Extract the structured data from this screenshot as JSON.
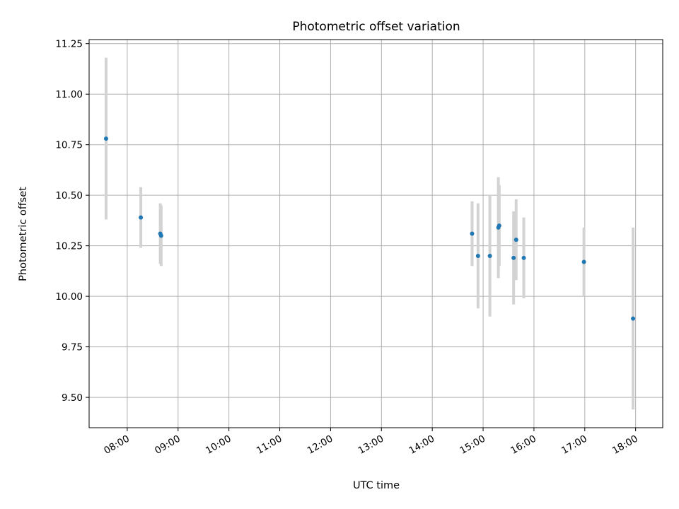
{
  "chart_data": {
    "type": "scatter",
    "title": "Photometric offset variation",
    "xlabel": "UTC time",
    "ylabel": "Photometric offset",
    "x_unit": "time of day (UTC)",
    "xlim": [
      "07:15",
      "18:32"
    ],
    "ylim": [
      9.35,
      11.27
    ],
    "x_ticks": [
      "08:00",
      "09:00",
      "10:00",
      "11:00",
      "12:00",
      "13:00",
      "14:00",
      "15:00",
      "16:00",
      "17:00",
      "18:00"
    ],
    "y_ticks": [
      "9.50",
      "9.75",
      "10.00",
      "10.25",
      "10.50",
      "10.75",
      "11.00",
      "11.25"
    ],
    "grid": true,
    "x_tick_rotation": "30 degrees",
    "colors": {
      "points": "#1f77b4",
      "error_bars": "#d3d3d3",
      "grid": "#b0b0b0",
      "axes": "#000000"
    },
    "points": [
      {
        "x": "07:35",
        "y": 10.78,
        "err": 0.4
      },
      {
        "x": "08:16",
        "y": 10.39,
        "err": 0.15
      },
      {
        "x": "08:39",
        "y": 10.31,
        "err": 0.15
      },
      {
        "x": "08:40",
        "y": 10.3,
        "err": 0.15
      },
      {
        "x": "14:47",
        "y": 10.31,
        "err": 0.16
      },
      {
        "x": "14:54",
        "y": 10.2,
        "err": 0.26
      },
      {
        "x": "15:08",
        "y": 10.2,
        "err": 0.3
      },
      {
        "x": "15:18",
        "y": 10.34,
        "err": 0.25
      },
      {
        "x": "15:19",
        "y": 10.35,
        "err": 0.2
      },
      {
        "x": "15:36",
        "y": 10.19,
        "err": 0.23
      },
      {
        "x": "15:39",
        "y": 10.28,
        "err": 0.2
      },
      {
        "x": "15:48",
        "y": 10.19,
        "err": 0.2
      },
      {
        "x": "16:59",
        "y": 10.17,
        "err": 0.17
      },
      {
        "x": "17:57",
        "y": 9.89,
        "err": 0.45
      }
    ]
  }
}
